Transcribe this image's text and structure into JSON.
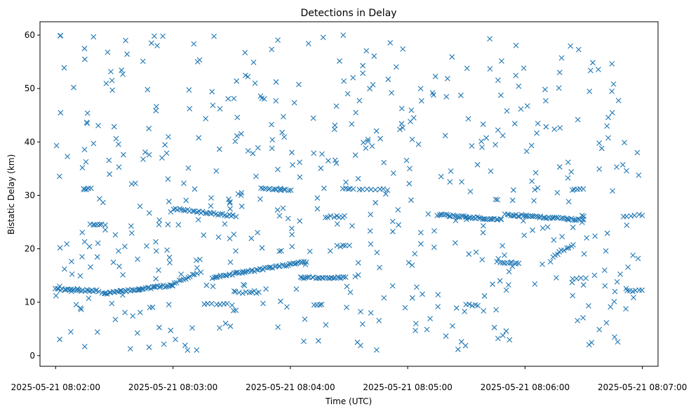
{
  "chart_data": {
    "type": "scatter",
    "title": "Detections in Delay",
    "xlabel": "Time (UTC)",
    "ylabel": "Bistatic Delay (km)",
    "x_unit": "seconds",
    "x_origin": "2025-05-21 08:02:00",
    "xlim": [
      -8,
      308
    ],
    "ylim": [
      -2,
      62.5
    ],
    "x_ticks": [
      {
        "value": 0,
        "label": "2025-05-21 08:02:00"
      },
      {
        "value": 60,
        "label": "2025-05-21 08:03:00"
      },
      {
        "value": 120,
        "label": "2025-05-21 08:04:00"
      },
      {
        "value": 180,
        "label": "2025-05-21 08:05:00"
      },
      {
        "value": 240,
        "label": "2025-05-21 08:06:00"
      },
      {
        "value": 300,
        "label": "2025-05-21 08:07:00"
      }
    ],
    "y_ticks": [
      0,
      10,
      20,
      30,
      40,
      50,
      60
    ],
    "grid": false,
    "marker": "x",
    "color": "#1f77b4",
    "tracks": [
      {
        "x0": 0,
        "x1": 22,
        "y0": 12.4,
        "y1": 12.1,
        "n": 26
      },
      {
        "x0": 24,
        "x1": 60,
        "y0": 11.6,
        "y1": 13.2,
        "n": 42
      },
      {
        "x0": 60,
        "x1": 72,
        "y0": 13.3,
        "y1": 15.5,
        "n": 12
      },
      {
        "x0": 80,
        "x1": 128,
        "y0": 14.6,
        "y1": 17.6,
        "n": 52
      },
      {
        "x0": 125,
        "x1": 148,
        "y0": 14.6,
        "y1": 14.6,
        "n": 24
      },
      {
        "x0": 60,
        "x1": 92,
        "y0": 27.5,
        "y1": 26.1,
        "n": 30
      },
      {
        "x0": 105,
        "x1": 120,
        "y0": 31.3,
        "y1": 31.0,
        "n": 14
      },
      {
        "x0": 147,
        "x1": 152,
        "y0": 31.3,
        "y1": 31.3,
        "n": 5
      },
      {
        "x0": 155,
        "x1": 170,
        "y0": 31.1,
        "y1": 31.1,
        "n": 8
      },
      {
        "x0": 138,
        "x1": 148,
        "y0": 26.0,
        "y1": 26.0,
        "n": 8
      },
      {
        "x0": 195,
        "x1": 228,
        "y0": 26.4,
        "y1": 25.4,
        "n": 38
      },
      {
        "x0": 230,
        "x1": 270,
        "y0": 26.4,
        "y1": 25.4,
        "n": 45
      },
      {
        "x0": 226,
        "x1": 237,
        "y0": 17.5,
        "y1": 17.3,
        "n": 10
      },
      {
        "x0": 254,
        "x1": 265,
        "y0": 18.6,
        "y1": 20.8,
        "n": 10
      },
      {
        "x0": 14,
        "x1": 18,
        "y0": 31.2,
        "y1": 31.2,
        "n": 5
      },
      {
        "x0": 18,
        "x1": 25,
        "y0": 24.7,
        "y1": 24.4,
        "n": 7
      },
      {
        "x0": 76,
        "x1": 90,
        "y0": 9.7,
        "y1": 9.6,
        "n": 8
      },
      {
        "x0": 92,
        "x1": 104,
        "y0": 11.8,
        "y1": 11.8,
        "n": 8
      },
      {
        "x0": 132,
        "x1": 136,
        "y0": 9.6,
        "y1": 9.6,
        "n": 4
      },
      {
        "x0": 210,
        "x1": 216,
        "y0": 9.5,
        "y1": 9.5,
        "n": 5
      },
      {
        "x0": 264,
        "x1": 270,
        "y0": 31.1,
        "y1": 31.1,
        "n": 5
      },
      {
        "x0": 264,
        "x1": 271,
        "y0": 14.5,
        "y1": 14.5,
        "n": 4
      },
      {
        "x0": 290,
        "x1": 300,
        "y0": 26.1,
        "y1": 26.3,
        "n": 6
      },
      {
        "x0": 292,
        "x1": 300,
        "y0": 12.2,
        "y1": 12.2,
        "n": 6
      },
      {
        "x0": 144,
        "x1": 150,
        "y0": 20.5,
        "y1": 20.5,
        "n": 5
      }
    ],
    "noise": {
      "count": 520,
      "seed": 7,
      "x_range": [
        0,
        300
      ],
      "y_range": [
        1,
        60
      ]
    }
  }
}
